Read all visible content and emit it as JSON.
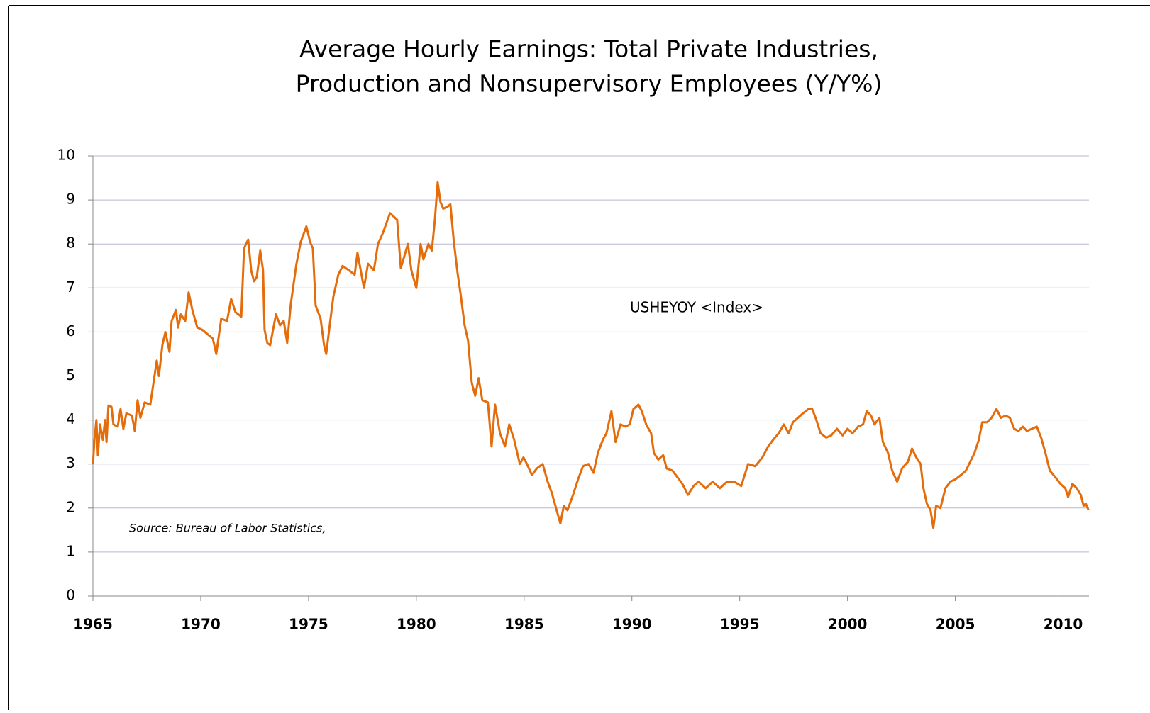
{
  "chart_data": {
    "type": "line",
    "title": [
      "Average Hourly Earnings: Total Private Industries,",
      "Production and Nonsupervisory Employees (Y/Y%)"
    ],
    "source": "Source: Bureau of Labor Statistics,",
    "xlim": [
      1965,
      2011.2
    ],
    "xticks": [
      1965,
      1970,
      1975,
      1980,
      1985,
      1990,
      1995,
      2000,
      2005,
      2010
    ],
    "ylim": [
      0,
      10
    ],
    "yticks": [
      0,
      1,
      2,
      3,
      4,
      5,
      6,
      7,
      8,
      9,
      10
    ],
    "grid": true,
    "x": [
      1965.0,
      1965.07,
      1965.16,
      1965.23,
      1965.33,
      1965.46,
      1965.56,
      1965.63,
      1965.72,
      1965.86,
      1965.95,
      1966.15,
      1966.28,
      1966.41,
      1966.55,
      1966.81,
      1966.94,
      1967.07,
      1967.2,
      1967.4,
      1967.66,
      1967.96,
      1968.06,
      1968.22,
      1968.36,
      1968.55,
      1968.65,
      1968.85,
      1968.95,
      1969.08,
      1969.28,
      1969.44,
      1969.61,
      1969.84,
      1970.07,
      1970.56,
      1970.72,
      1970.95,
      1971.22,
      1971.41,
      1971.61,
      1971.88,
      1972.01,
      1972.2,
      1972.34,
      1972.47,
      1972.6,
      1972.76,
      1972.89,
      1972.96,
      1973.09,
      1973.22,
      1973.49,
      1973.68,
      1973.85,
      1974.01,
      1974.18,
      1974.44,
      1974.64,
      1974.9,
      1975.07,
      1975.2,
      1975.33,
      1975.56,
      1975.72,
      1975.82,
      1976.02,
      1976.15,
      1976.38,
      1976.58,
      1976.88,
      1977.14,
      1977.27,
      1977.57,
      1977.76,
      1978.03,
      1978.22,
      1978.45,
      1978.78,
      1979.11,
      1979.28,
      1979.61,
      1979.77,
      1980.0,
      1980.2,
      1980.33,
      1980.56,
      1980.72,
      1980.86,
      1980.99,
      1981.12,
      1981.25,
      1981.45,
      1981.58,
      1981.74,
      1981.91,
      1982.07,
      1982.24,
      1982.4,
      1982.57,
      1982.73,
      1982.89,
      1983.06,
      1983.32,
      1983.49,
      1983.65,
      1983.88,
      1984.11,
      1984.31,
      1984.54,
      1984.8,
      1984.97,
      1985.13,
      1985.36,
      1985.59,
      1985.86,
      1986.09,
      1986.28,
      1986.48,
      1986.68,
      1986.84,
      1987.01,
      1987.27,
      1987.5,
      1987.73,
      1987.99,
      1988.22,
      1988.42,
      1988.65,
      1988.82,
      1989.05,
      1989.24,
      1989.47,
      1989.7,
      1989.9,
      1990.07,
      1990.3,
      1990.46,
      1990.66,
      1990.89,
      1991.02,
      1991.22,
      1991.45,
      1991.61,
      1991.88,
      1992.11,
      1992.34,
      1992.6,
      1992.86,
      1993.09,
      1993.42,
      1993.75,
      1994.08,
      1994.41,
      1994.74,
      1995.07,
      1995.39,
      1995.72,
      1996.05,
      1996.32,
      1996.55,
      1996.81,
      1997.04,
      1997.27,
      1997.47,
      1997.7,
      1997.93,
      1998.19,
      1998.36,
      1998.52,
      1998.75,
      1999.01,
      1999.24,
      1999.51,
      1999.77,
      2000.0,
      2000.23,
      2000.49,
      2000.72,
      2000.89,
      2001.09,
      2001.25,
      2001.48,
      2001.64,
      2001.88,
      2002.07,
      2002.3,
      2002.53,
      2002.8,
      2002.99,
      2003.19,
      2003.39,
      2003.52,
      2003.68,
      2003.85,
      2003.98,
      2004.11,
      2004.31,
      2004.54,
      2004.77,
      2005.0,
      2005.26,
      2005.49,
      2005.69,
      2005.89,
      2006.09,
      2006.25,
      2006.48,
      2006.68,
      2006.91,
      2007.11,
      2007.34,
      2007.53,
      2007.73,
      2007.93,
      2008.13,
      2008.32,
      2008.55,
      2008.78,
      2008.98,
      2009.18,
      2009.38,
      2009.64,
      2009.87,
      2010.1,
      2010.23,
      2010.43,
      2010.63,
      2010.82,
      2010.95,
      2011.05,
      2011.18
    ],
    "series": [
      {
        "name": "USHEYOY <Index>",
        "color": "#E46C0A",
        "values": [
          3.0,
          3.55,
          4.0,
          3.2,
          3.9,
          3.55,
          4.0,
          3.5,
          4.33,
          4.3,
          3.9,
          3.85,
          4.25,
          3.8,
          4.15,
          4.1,
          3.75,
          4.45,
          4.05,
          4.4,
          4.35,
          5.35,
          5.0,
          5.7,
          6.0,
          5.55,
          6.25,
          6.5,
          6.1,
          6.4,
          6.25,
          6.9,
          6.5,
          6.1,
          6.05,
          5.85,
          5.5,
          6.3,
          6.25,
          6.75,
          6.45,
          6.35,
          7.9,
          8.1,
          7.4,
          7.15,
          7.25,
          7.85,
          7.4,
          6.05,
          5.75,
          5.7,
          6.4,
          6.15,
          6.25,
          5.75,
          6.65,
          7.55,
          8.05,
          8.4,
          8.05,
          7.9,
          6.6,
          6.3,
          5.7,
          5.5,
          6.3,
          6.8,
          7.3,
          7.5,
          7.4,
          7.3,
          7.8,
          7.0,
          7.55,
          7.4,
          8.0,
          8.25,
          8.7,
          8.55,
          7.45,
          8.0,
          7.4,
          7.0,
          8.0,
          7.65,
          8.0,
          7.85,
          8.55,
          9.4,
          8.95,
          8.8,
          8.85,
          8.9,
          8.05,
          7.35,
          6.8,
          6.15,
          5.8,
          4.85,
          4.55,
          4.95,
          4.45,
          4.4,
          3.4,
          4.35,
          3.7,
          3.4,
          3.9,
          3.55,
          3.0,
          3.15,
          3.0,
          2.75,
          2.9,
          3.0,
          2.6,
          2.35,
          2.0,
          1.65,
          2.05,
          1.95,
          2.3,
          2.65,
          2.95,
          3.0,
          2.8,
          3.25,
          3.55,
          3.7,
          4.2,
          3.5,
          3.9,
          3.85,
          3.9,
          4.25,
          4.35,
          4.2,
          3.9,
          3.7,
          3.25,
          3.1,
          3.2,
          2.9,
          2.85,
          2.7,
          2.55,
          2.3,
          2.5,
          2.6,
          2.45,
          2.6,
          2.45,
          2.6,
          2.6,
          2.5,
          3.0,
          2.95,
          3.15,
          3.4,
          3.55,
          3.7,
          3.9,
          3.7,
          3.95,
          4.05,
          4.15,
          4.25,
          4.25,
          4.05,
          3.7,
          3.6,
          3.65,
          3.8,
          3.65,
          3.8,
          3.7,
          3.85,
          3.9,
          4.2,
          4.1,
          3.9,
          4.05,
          3.5,
          3.25,
          2.85,
          2.6,
          2.9,
          3.05,
          3.35,
          3.15,
          3.0,
          2.45,
          2.1,
          1.95,
          1.55,
          2.05,
          2.0,
          2.45,
          2.6,
          2.65,
          2.75,
          2.85,
          3.05,
          3.25,
          3.55,
          3.95,
          3.95,
          4.05,
          4.25,
          4.05,
          4.1,
          4.05,
          3.8,
          3.75,
          3.85,
          3.75,
          3.8,
          3.85,
          3.6,
          3.25,
          2.85,
          2.7,
          2.55,
          2.45,
          2.25,
          2.55,
          2.45,
          2.3,
          2.05,
          2.1,
          1.95
        ]
      }
    ]
  }
}
